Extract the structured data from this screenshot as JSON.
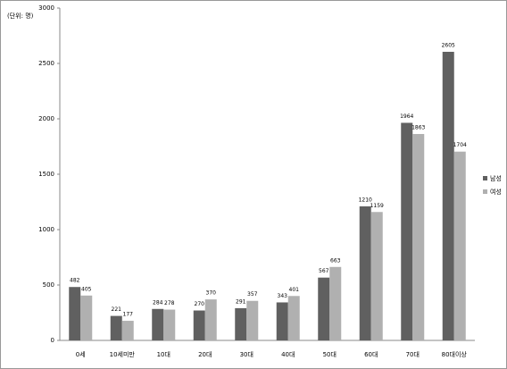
{
  "chart_data": {
    "type": "bar",
    "y_label": "(단위: 명)",
    "categories": [
      "0세",
      "10세미만",
      "10대",
      "20대",
      "30대",
      "40대",
      "50대",
      "60대",
      "70대",
      "80대이상"
    ],
    "series": [
      {
        "name": "남성",
        "color": "#606060",
        "values": [
          482,
          221,
          284,
          270,
          291,
          343,
          567,
          1210,
          1964,
          2605
        ]
      },
      {
        "name": "여성",
        "color": "#b0b0b0",
        "values": [
          405,
          177,
          278,
          370,
          357,
          401,
          663,
          1159,
          1863,
          1704
        ]
      }
    ],
    "ylim": [
      0,
      3000
    ],
    "yticks": [
      0,
      500,
      1000,
      1500,
      2000,
      2500,
      3000
    ],
    "legend": "right"
  }
}
